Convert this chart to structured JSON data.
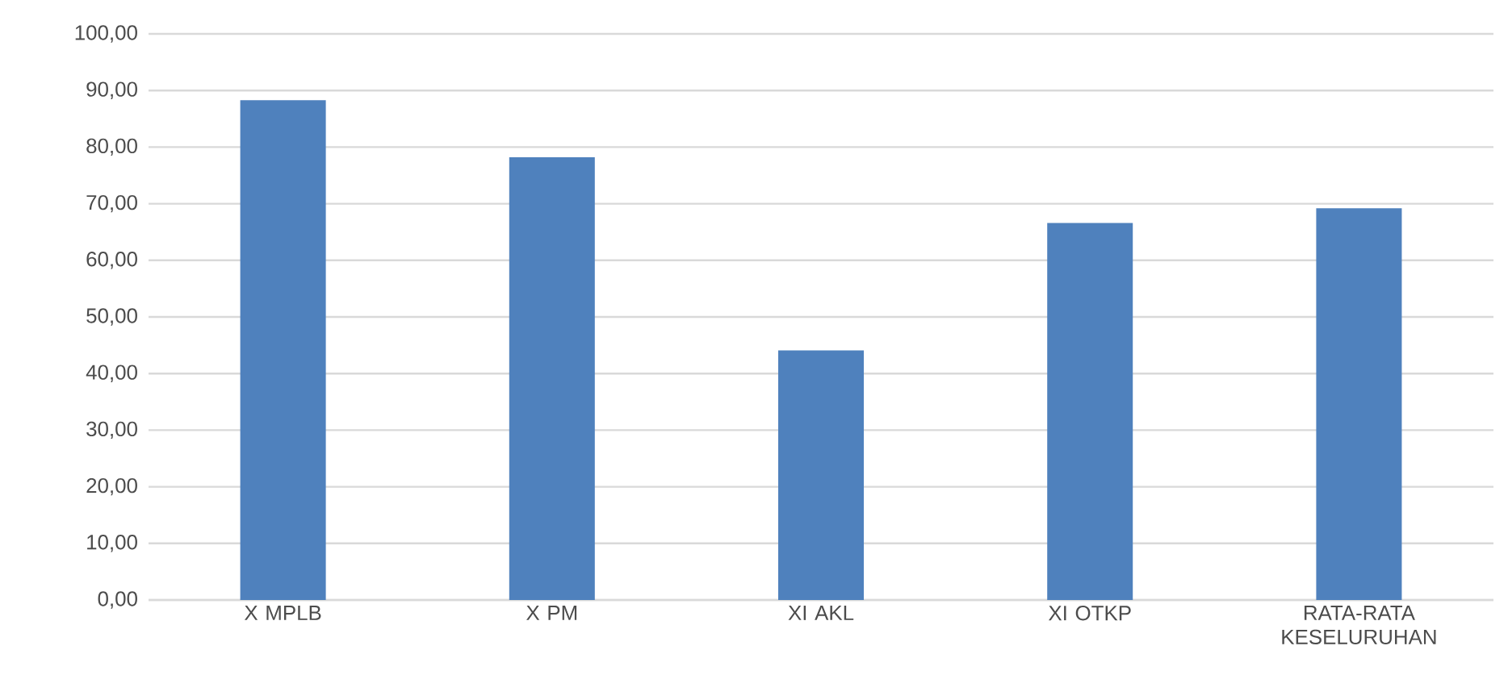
{
  "chart_data": {
    "type": "bar",
    "categories": [
      "X MPLB",
      "X PM",
      "XI AKL",
      "XI OTKP",
      "RATA-RATA KESELURUHAN"
    ],
    "values": [
      88.3,
      78.2,
      44.1,
      66.6,
      69.2
    ],
    "color": "#4f81bd",
    "ylim": [
      0,
      100
    ],
    "yticks": [
      {
        "value": 0,
        "label": "0,00"
      },
      {
        "value": 10,
        "label": "10,00"
      },
      {
        "value": 20,
        "label": "20,00"
      },
      {
        "value": 30,
        "label": "30,00"
      },
      {
        "value": 40,
        "label": "40,00"
      },
      {
        "value": 50,
        "label": "50,00"
      },
      {
        "value": 60,
        "label": "60,00"
      },
      {
        "value": 70,
        "label": "70,00"
      },
      {
        "value": 80,
        "label": "80,00"
      },
      {
        "value": 90,
        "label": "90,00"
      },
      {
        "value": 100,
        "label": "100,00"
      }
    ],
    "grid": "y"
  }
}
